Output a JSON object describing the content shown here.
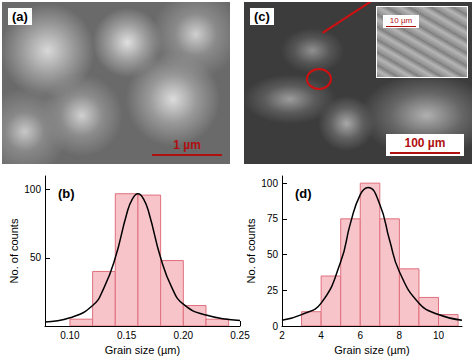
{
  "images": [
    {
      "label": "(a)",
      "scale_bar": "1 µm"
    },
    {
      "label": "(c)",
      "scale_bar": "100 µm",
      "inset_scale_bar": "10 µm"
    }
  ],
  "chart_data": [
    {
      "type": "histogram",
      "title": "(b)",
      "x_label": "Grain size (µm)",
      "y_label": "No. of counts",
      "bins": [
        0.1,
        0.12,
        0.14,
        0.16,
        0.18,
        0.2,
        0.22,
        0.24
      ],
      "counts": [
        5,
        40,
        97,
        96,
        48,
        15,
        5
      ],
      "color": "#f7c4ca",
      "fit": {
        "type": "line",
        "color": "#000000",
        "x": [
          0.078,
          0.1,
          0.12,
          0.13,
          0.14,
          0.15,
          0.155,
          0.16,
          0.165,
          0.17,
          0.18,
          0.19,
          0.2,
          0.22,
          0.25
        ],
        "values": [
          3,
          6,
          15,
          28,
          50,
          82,
          93,
          97,
          93,
          82,
          50,
          28,
          16,
          8,
          4
        ]
      },
      "xlim": [
        0.078,
        0.25
      ],
      "xticks": [
        {
          "value": 0.1,
          "label": "0.10"
        },
        0.15,
        {
          "value": 0.2,
          "label": "0.20"
        },
        0.25
      ],
      "ylim": [
        0,
        110
      ],
      "yticks": [
        50,
        100
      ],
      "grid": false
    },
    {
      "type": "histogram",
      "title": "(d)",
      "x_label": "Grain size (µm)",
      "y_label": "No. of counts",
      "bins": [
        3,
        4,
        5,
        6,
        7,
        8,
        9,
        10,
        11
      ],
      "counts": [
        10,
        35,
        75,
        100,
        75,
        40,
        20,
        8
      ],
      "color": "#f7c4ca",
      "fit": {
        "type": "line",
        "color": "#000000",
        "x": [
          2,
          3,
          4,
          5,
          5.5,
          6,
          6.4,
          7,
          7.5,
          8,
          9,
          10,
          11.2
        ],
        "values": [
          4,
          8,
          16,
          45,
          72,
          92,
          97,
          85,
          60,
          38,
          16,
          8,
          4
        ]
      },
      "xlim": [
        2,
        11.2
      ],
      "xticks": [
        2,
        4,
        6,
        8,
        10
      ],
      "ylim": [
        0,
        105
      ],
      "yticks": [
        0,
        25,
        50,
        75,
        100
      ],
      "grid": false
    }
  ]
}
